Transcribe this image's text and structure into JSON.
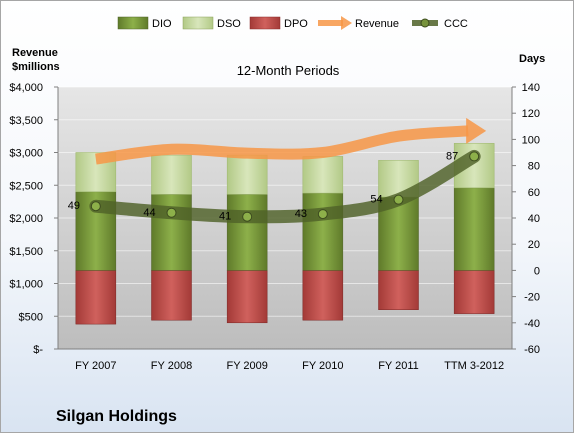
{
  "chart_data": {
    "type": "bar",
    "title": "12-Month Periods",
    "company": "Silgan Holdings",
    "y_left_label": [
      "Revenue",
      "$millions"
    ],
    "y_right_label": "Days",
    "categories": [
      "FY 2007",
      "FY 2008",
      "FY 2009",
      "FY 2010",
      "FY 2011",
      "TTM 3-2012"
    ],
    "left_axis": {
      "min": 0,
      "max": 4000,
      "step": 500,
      "ticks": [
        "$-",
        "$500",
        "$1,000",
        "$1,500",
        "$2,000",
        "$2,500",
        "$3,000",
        "$3,500",
        "$4,000"
      ]
    },
    "right_axis": {
      "min": -60,
      "max": 140,
      "step": 20
    },
    "series": [
      {
        "name": "DIO",
        "kind": "stacked-bar-right",
        "color": "#77933c",
        "values": [
          60,
          58,
          58,
          59,
          56,
          63
        ]
      },
      {
        "name": "DSO",
        "kind": "stacked-bar-right",
        "color": "#c4d79b",
        "values": [
          30,
          30,
          30,
          28,
          28,
          34
        ]
      },
      {
        "name": "DPO",
        "kind": "stacked-bar-right",
        "color": "#c0504d",
        "values": [
          41,
          38,
          40,
          38,
          30,
          33
        ]
      },
      {
        "name": "Revenue",
        "kind": "arrow-left",
        "color": "#f79646",
        "values": [
          2900,
          3050,
          2990,
          3000,
          3250,
          3330
        ]
      },
      {
        "name": "CCC",
        "kind": "line-right",
        "color": "#4f6228",
        "values": [
          49,
          44,
          41,
          43,
          54,
          87
        ]
      }
    ],
    "data_labels": [
      "49",
      "44",
      "41",
      "43",
      "54",
      "87"
    ],
    "legend_position": "top"
  }
}
